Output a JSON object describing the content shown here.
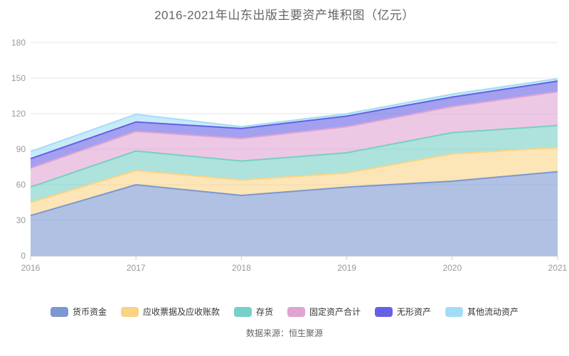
{
  "title": "2016-2021年山东出版主要资产堆积图（亿元）",
  "footer": "数据来源：恒生聚源",
  "axis": {
    "y_labels": [
      "0",
      "30",
      "60",
      "90",
      "120",
      "150",
      "180"
    ],
    "x_labels": [
      "2016",
      "2017",
      "2018",
      "2019",
      "2020",
      "2021"
    ]
  },
  "colors": {
    "title_text": "#666666",
    "axis_text": "#999999",
    "gridline": "#e4e7f2",
    "axis_line": "#cccccc",
    "legend_text": "#333333"
  },
  "chart_data": {
    "type": "area",
    "stacked": true,
    "title": "2016-2021年山东出版主要资产堆积图（亿元）",
    "x": [
      "2016",
      "2017",
      "2018",
      "2019",
      "2020",
      "2021"
    ],
    "series": [
      {
        "name": "货币资金",
        "color": "#7B98D1",
        "values": [
          34,
          60,
          51,
          58,
          63,
          71
        ]
      },
      {
        "name": "应收票据及应收账款",
        "color": "#FAD385",
        "values": [
          11,
          12,
          13,
          12,
          23,
          20.5
        ]
      },
      {
        "name": "存货",
        "color": "#76D0C5",
        "values": [
          13,
          16.5,
          16,
          17,
          18,
          18.5
        ]
      },
      {
        "name": "固定资产合计",
        "color": "#E0A3D2",
        "values": [
          16,
          16.5,
          19,
          22,
          22,
          28.5
        ]
      },
      {
        "name": "无形资产",
        "color": "#6660E6",
        "values": [
          8,
          8,
          8.5,
          9,
          8,
          9
        ]
      },
      {
        "name": "其他流动资产",
        "color": "#A3DDF5",
        "values": [
          6,
          6.5,
          1.5,
          2,
          2.5,
          2
        ]
      }
    ],
    "ylabel": "",
    "xlabel": "",
    "ylim": [
      0,
      180
    ],
    "yticks": [
      0,
      30,
      60,
      90,
      120,
      150,
      180
    ],
    "grid": true,
    "fill_opacity": 0.6,
    "legend_position": "bottom",
    "source_note": "数据来源：恒生聚源"
  }
}
